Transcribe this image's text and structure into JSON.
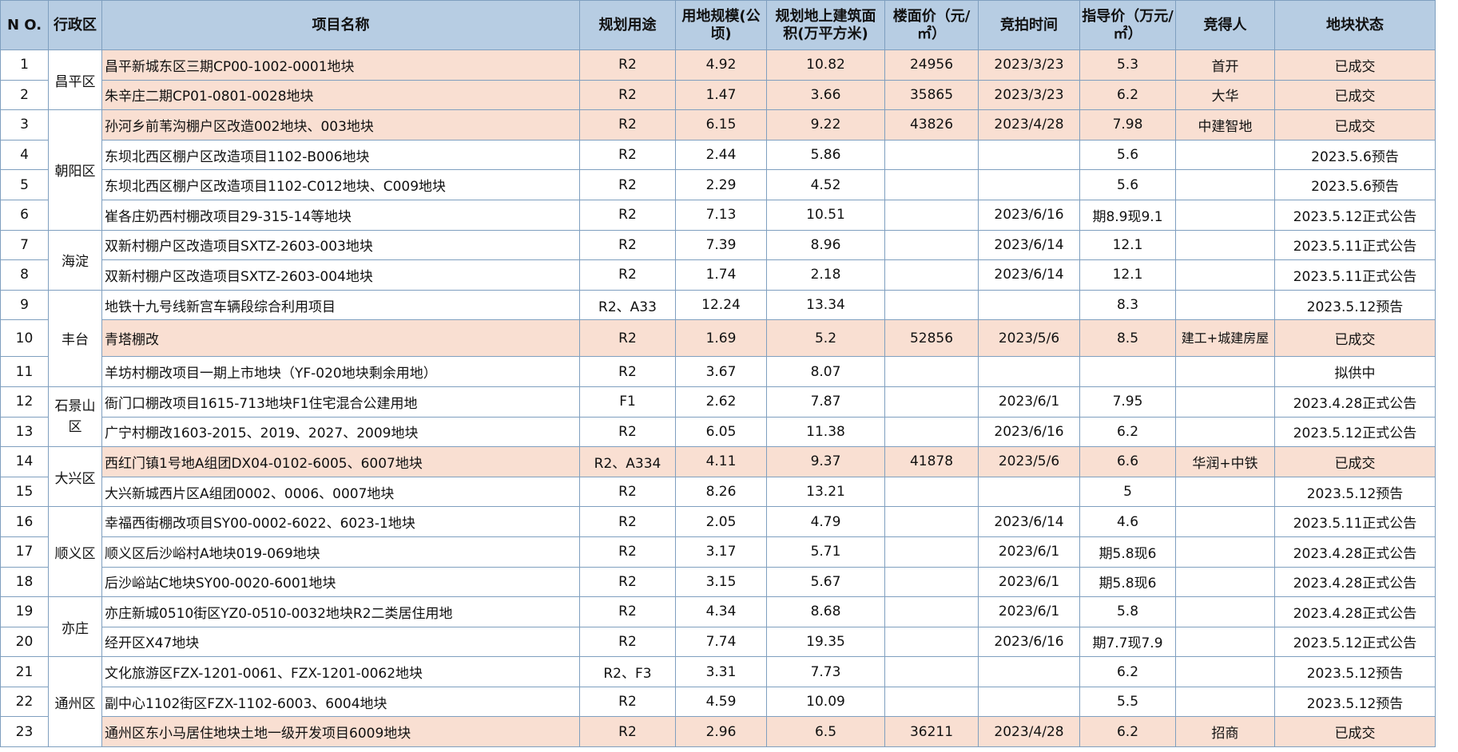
{
  "headers": {
    "no": "N O.",
    "district": "行政区",
    "name": "项目名称",
    "usage": "规划用途",
    "area": "用地规模(公顷)",
    "gfa": "规划地上建筑面积(万平方米)",
    "floor_price": "楼面价（元/㎡）",
    "auction_date": "竞拍时间",
    "guide_price": "指导价（万元/㎡）",
    "winner": "竞得人",
    "status": "地块状态"
  },
  "rows": [
    {
      "no": "1",
      "district": "昌平区",
      "name": "昌平新城东区三期CP00-1002-0001地块",
      "usage": "R2",
      "area": "4.92",
      "gfa": "10.82",
      "floor_price": "24956",
      "auction_date": "2023/3/23",
      "guide_price": "5.3",
      "winner": "首开",
      "status": "已成交"
    },
    {
      "no": "2",
      "district": "",
      "name": "朱辛庄二期CP01-0801-0028地块",
      "usage": "R2",
      "area": "1.47",
      "gfa": "3.66",
      "floor_price": "35865",
      "auction_date": "2023/3/23",
      "guide_price": "6.2",
      "winner": "大华",
      "status": "已成交"
    },
    {
      "no": "3",
      "district": "朝阳区",
      "name": "孙河乡前苇沟棚户区改造002地块、003地块",
      "usage": "R2",
      "area": "6.15",
      "gfa": "9.22",
      "floor_price": "43826",
      "auction_date": "2023/4/28",
      "guide_price": "7.98",
      "winner": "中建智地",
      "status": "已成交"
    },
    {
      "no": "4",
      "district": "",
      "name": "东坝北西区棚户区改造项目1102-B006地块",
      "usage": "R2",
      "area": "2.44",
      "gfa": "5.86",
      "floor_price": "",
      "auction_date": "",
      "guide_price": "5.6",
      "winner": "",
      "status": "2023.5.6预告"
    },
    {
      "no": "5",
      "district": "",
      "name": "东坝北西区棚户区改造项目1102-C012地块、C009地块",
      "usage": "R2",
      "area": "2.29",
      "gfa": "4.52",
      "floor_price": "",
      "auction_date": "",
      "guide_price": "5.6",
      "winner": "",
      "status": "2023.5.6预告"
    },
    {
      "no": "6",
      "district": "",
      "name": "崔各庄奶西村棚改项目29-315-14等地块",
      "usage": "R2",
      "area": "7.13",
      "gfa": "10.51",
      "floor_price": "",
      "auction_date": "2023/6/16",
      "guide_price": "期8.9现9.1",
      "winner": "",
      "status": "2023.5.12正式公告"
    },
    {
      "no": "7",
      "district": "海淀",
      "name": "双新村棚户区改造项目SXTZ-2603-003地块",
      "usage": "R2",
      "area": "7.39",
      "gfa": "8.96",
      "floor_price": "",
      "auction_date": "2023/6/14",
      "guide_price": "12.1",
      "winner": "",
      "status": "2023.5.11正式公告"
    },
    {
      "no": "8",
      "district": "",
      "name": "双新村棚户区改造项目SXTZ-2603-004地块",
      "usage": "R2",
      "area": "1.74",
      "gfa": "2.18",
      "floor_price": "",
      "auction_date": "2023/6/14",
      "guide_price": "12.1",
      "winner": "",
      "status": "2023.5.11正式公告"
    },
    {
      "no": "9",
      "district": "丰台",
      "name": "地铁十九号线新宫车辆段综合利用项目",
      "usage": "R2、A33",
      "area": "12.24",
      "gfa": "13.34",
      "floor_price": "",
      "auction_date": "",
      "guide_price": "8.3",
      "winner": "",
      "status": "2023.5.12预告"
    },
    {
      "no": "10",
      "district": "",
      "name": "青塔棚改",
      "usage": "R2",
      "area": "1.69",
      "gfa": "5.2",
      "floor_price": "52856",
      "auction_date": "2023/5/6",
      "guide_price": "8.5",
      "winner": "建工+城建房屋",
      "status": "已成交"
    },
    {
      "no": "11",
      "district": "",
      "name": "羊坊村棚改项目一期上市地块（YF-020地块剩余用地）",
      "usage": "R2",
      "area": "3.67",
      "gfa": "8.07",
      "floor_price": "",
      "auction_date": "",
      "guide_price": "",
      "winner": "",
      "status": "拟供中"
    },
    {
      "no": "12",
      "district": "石景山区",
      "name": "衙门口棚改项目1615-713地块F1住宅混合公建用地",
      "usage": "F1",
      "area": "2.62",
      "gfa": "7.87",
      "floor_price": "",
      "auction_date": "2023/6/1",
      "guide_price": "7.95",
      "winner": "",
      "status": "2023.4.28正式公告"
    },
    {
      "no": "13",
      "district": "",
      "name": "广宁村棚改1603-2015、2019、2027、2009地块",
      "usage": "R2",
      "area": "6.05",
      "gfa": "11.38",
      "floor_price": "",
      "auction_date": "2023/6/16",
      "guide_price": "6.2",
      "winner": "",
      "status": "2023.5.12正式公告"
    },
    {
      "no": "14",
      "district": "大兴区",
      "name": "西红门镇1号地A组团DX04-0102-6005、6007地块",
      "usage": "R2、A334",
      "area": "4.11",
      "gfa": "9.37",
      "floor_price": "41878",
      "auction_date": "2023/5/6",
      "guide_price": "6.6",
      "winner": "华润+中铁",
      "status": "已成交"
    },
    {
      "no": "15",
      "district": "",
      "name": "大兴新城西片区A组团0002、0006、0007地块",
      "usage": "R2",
      "area": "8.26",
      "gfa": "13.21",
      "floor_price": "",
      "auction_date": "",
      "guide_price": "5",
      "winner": "",
      "status": "2023.5.12预告"
    },
    {
      "no": "16",
      "district": "顺义区",
      "name": "幸福西街棚改项目SY00-0002-6022、6023-1地块",
      "usage": "R2",
      "area": "2.05",
      "gfa": "4.79",
      "floor_price": "",
      "auction_date": "2023/6/14",
      "guide_price": "4.6",
      "winner": "",
      "status": "2023.5.11正式公告"
    },
    {
      "no": "17",
      "district": "",
      "name": "顺义区后沙峪村A地块019-069地块",
      "usage": "R2",
      "area": "3.17",
      "gfa": "5.71",
      "floor_price": "",
      "auction_date": "2023/6/1",
      "guide_price": "期5.8现6",
      "winner": "",
      "status": "2023.4.28正式公告"
    },
    {
      "no": "18",
      "district": "",
      "name": "后沙峪站C地块SY00-0020-6001地块",
      "usage": "R2",
      "area": "3.15",
      "gfa": "5.67",
      "floor_price": "",
      "auction_date": "2023/6/1",
      "guide_price": "期5.8现6",
      "winner": "",
      "status": "2023.4.28正式公告"
    },
    {
      "no": "19",
      "district": "亦庄",
      "name": "亦庄新城0510街区YZ0-0510-0032地块R2二类居住用地",
      "usage": "R2",
      "area": "4.34",
      "gfa": "8.68",
      "floor_price": "",
      "auction_date": "2023/6/1",
      "guide_price": "5.8",
      "winner": "",
      "status": "2023.4.28正式公告"
    },
    {
      "no": "20",
      "district": "",
      "name": "经开区X47地块",
      "usage": "R2",
      "area": "7.74",
      "gfa": "19.35",
      "floor_price": "",
      "auction_date": "2023/6/16",
      "guide_price": "期7.7现7.9",
      "winner": "",
      "status": "2023.5.12正式公告"
    },
    {
      "no": "21",
      "district": "通州区",
      "name": "文化旅游区FZX-1201-0061、FZX-1201-0062地块",
      "usage": "R2、F3",
      "area": "3.31",
      "gfa": "7.73",
      "floor_price": "",
      "auction_date": "",
      "guide_price": "6.2",
      "winner": "",
      "status": "2023.5.12预告"
    },
    {
      "no": "22",
      "district": "",
      "name": "副中心1102街区FZX-1102-6003、6004地块",
      "usage": "R2",
      "area": "4.59",
      "gfa": "10.09",
      "floor_price": "",
      "auction_date": "",
      "guide_price": "5.5",
      "winner": "",
      "status": "2023.5.12预告"
    },
    {
      "no": "23",
      "district": "",
      "name": "通州区东小马居住地块土地一级开发项目6009地块",
      "usage": "R2",
      "area": "2.96",
      "gfa": "6.5",
      "floor_price": "36211",
      "auction_date": "2023/4/28",
      "guide_price": "6.2",
      "winner": "招商",
      "status": "已成交"
    }
  ]
}
